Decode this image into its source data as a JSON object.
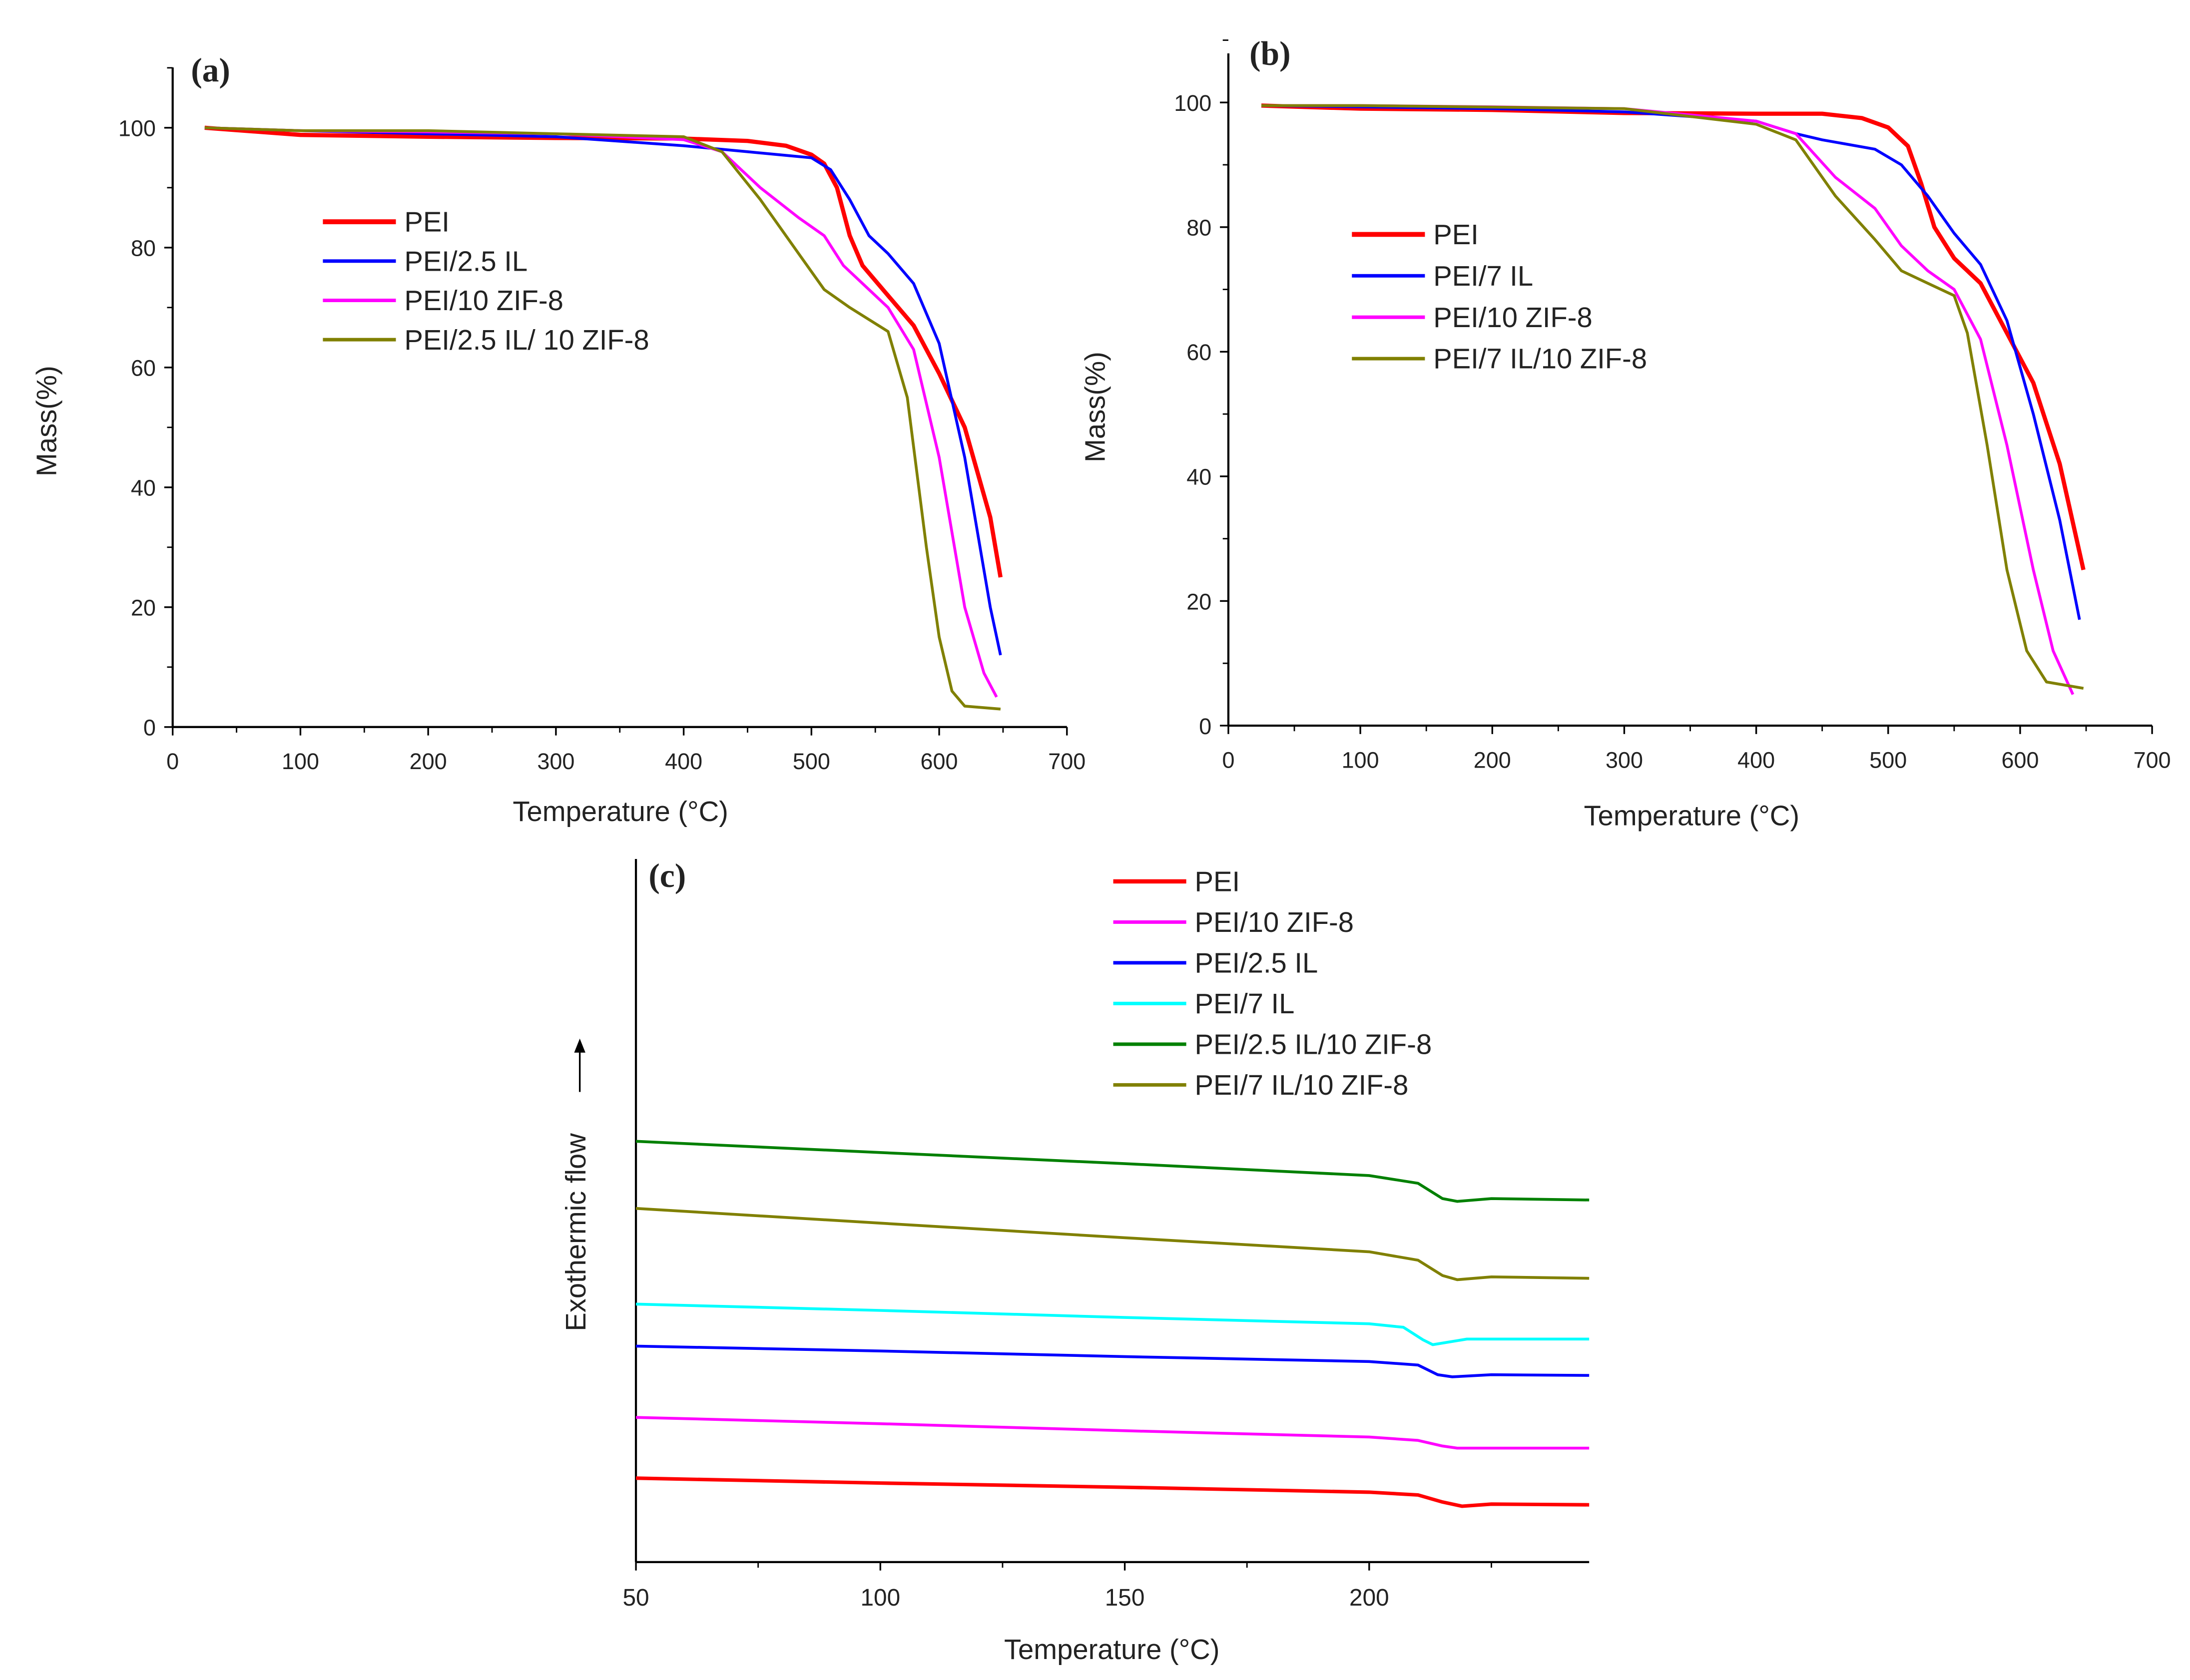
{
  "chart_data": [
    {
      "panel_label": "(a)",
      "type": "line",
      "xlabel": "Temperature (°C)",
      "ylabel": "Mass(%)",
      "xlim": [
        0,
        700
      ],
      "ylim": [
        0,
        110
      ],
      "xticks": [
        0,
        100,
        200,
        300,
        400,
        500,
        600,
        700
      ],
      "yticks": [
        0,
        20,
        40,
        60,
        80,
        100
      ],
      "legend_position": "upper-left",
      "series": [
        {
          "name": "PEI",
          "color": "#ff0000",
          "width": 3,
          "points": [
            [
              25,
              100
            ],
            [
              100,
              98.8
            ],
            [
              200,
              98.5
            ],
            [
              300,
              98.3
            ],
            [
              400,
              98.2
            ],
            [
              450,
              97.8
            ],
            [
              480,
              97
            ],
            [
              500,
              95.5
            ],
            [
              510,
              94
            ],
            [
              520,
              90
            ],
            [
              530,
              82
            ],
            [
              540,
              77
            ],
            [
              560,
              72
            ],
            [
              580,
              67
            ],
            [
              600,
              59
            ],
            [
              620,
              50
            ],
            [
              640,
              35
            ],
            [
              648,
              25
            ]
          ]
        },
        {
          "name": "PEI/2.5 IL",
          "color": "#0000ff",
          "width": 2,
          "points": [
            [
              25,
              100
            ],
            [
              100,
              99.5
            ],
            [
              200,
              99
            ],
            [
              300,
              98.5
            ],
            [
              400,
              97
            ],
            [
              450,
              96
            ],
            [
              500,
              95
            ],
            [
              515,
              93
            ],
            [
              530,
              88
            ],
            [
              545,
              82
            ],
            [
              560,
              79
            ],
            [
              580,
              74
            ],
            [
              600,
              64
            ],
            [
              620,
              45
            ],
            [
              640,
              20
            ],
            [
              648,
              12
            ]
          ]
        },
        {
          "name": "PEI/10 ZIF-8",
          "color": "#ff00ff",
          "width": 2,
          "points": [
            [
              25,
              100
            ],
            [
              100,
              99.5
            ],
            [
              200,
              99.3
            ],
            [
              300,
              99
            ],
            [
              400,
              98
            ],
            [
              430,
              96
            ],
            [
              460,
              90
            ],
            [
              490,
              85
            ],
            [
              510,
              82
            ],
            [
              525,
              77
            ],
            [
              540,
              74
            ],
            [
              560,
              70
            ],
            [
              580,
              63
            ],
            [
              600,
              45
            ],
            [
              620,
              20
            ],
            [
              635,
              9
            ],
            [
              645,
              5
            ]
          ]
        },
        {
          "name": "PEI/2.5 IL/ 10 ZIF-8",
          "color": "#808000",
          "width": 2,
          "points": [
            [
              25,
              100
            ],
            [
              100,
              99.5
            ],
            [
              200,
              99.5
            ],
            [
              300,
              99
            ],
            [
              400,
              98.5
            ],
            [
              430,
              96
            ],
            [
              460,
              88
            ],
            [
              490,
              79
            ],
            [
              510,
              73
            ],
            [
              530,
              70
            ],
            [
              560,
              66
            ],
            [
              575,
              55
            ],
            [
              590,
              30
            ],
            [
              600,
              15
            ],
            [
              610,
              6
            ],
            [
              620,
              3.5
            ],
            [
              648,
              3
            ]
          ]
        }
      ]
    },
    {
      "panel_label": "(b)",
      "type": "line",
      "xlabel": "Temperature (°C)",
      "ylabel": "Mass(%)",
      "xlim": [
        0,
        700
      ],
      "ylim": [
        0,
        110
      ],
      "xticks": [
        0,
        100,
        200,
        300,
        400,
        500,
        600,
        700
      ],
      "yticks": [
        0,
        20,
        40,
        60,
        80,
        100
      ],
      "legend_position": "upper-left",
      "series": [
        {
          "name": "PEI",
          "color": "#ff0000",
          "width": 3,
          "points": [
            [
              25,
              99.5
            ],
            [
              100,
              99
            ],
            [
              200,
              98.8
            ],
            [
              300,
              98.3
            ],
            [
              400,
              98.2
            ],
            [
              450,
              98.2
            ],
            [
              480,
              97.5
            ],
            [
              500,
              96
            ],
            [
              515,
              93
            ],
            [
              525,
              87
            ],
            [
              535,
              80
            ],
            [
              550,
              75
            ],
            [
              570,
              71
            ],
            [
              590,
              63
            ],
            [
              610,
              55
            ],
            [
              630,
              42
            ],
            [
              648,
              25
            ]
          ]
        },
        {
          "name": "PEI/7 IL",
          "color": "#0000ff",
          "width": 2,
          "points": [
            [
              25,
              99.5
            ],
            [
              100,
              99.3
            ],
            [
              200,
              99
            ],
            [
              300,
              98.5
            ],
            [
              400,
              97
            ],
            [
              430,
              95
            ],
            [
              450,
              94
            ],
            [
              490,
              92.5
            ],
            [
              510,
              90
            ],
            [
              530,
              85
            ],
            [
              550,
              79
            ],
            [
              570,
              74
            ],
            [
              590,
              65
            ],
            [
              610,
              50
            ],
            [
              630,
              33
            ],
            [
              645,
              17
            ]
          ]
        },
        {
          "name": "PEI/10 ZIF-8",
          "color": "#ff00ff",
          "width": 2,
          "points": [
            [
              25,
              99.5
            ],
            [
              100,
              99.5
            ],
            [
              200,
              99.3
            ],
            [
              300,
              99
            ],
            [
              400,
              97
            ],
            [
              430,
              95
            ],
            [
              460,
              88
            ],
            [
              490,
              83
            ],
            [
              510,
              77
            ],
            [
              530,
              73
            ],
            [
              550,
              70
            ],
            [
              570,
              62
            ],
            [
              590,
              45
            ],
            [
              610,
              25
            ],
            [
              625,
              12
            ],
            [
              640,
              5
            ]
          ]
        },
        {
          "name": "PEI/7 IL/10 ZIF-8",
          "color": "#808000",
          "width": 2,
          "points": [
            [
              25,
              99.5
            ],
            [
              100,
              99.5
            ],
            [
              300,
              99
            ],
            [
              400,
              96.5
            ],
            [
              430,
              94
            ],
            [
              460,
              85
            ],
            [
              490,
              78
            ],
            [
              510,
              73
            ],
            [
              530,
              71
            ],
            [
              550,
              69
            ],
            [
              560,
              63
            ],
            [
              575,
              45
            ],
            [
              590,
              25
            ],
            [
              605,
              12
            ],
            [
              620,
              7
            ],
            [
              648,
              6
            ]
          ]
        }
      ]
    },
    {
      "panel_label": "(c)",
      "type": "line",
      "xlabel": "Temperature (°C)",
      "ylabel": "Exothermic flow",
      "xlim": [
        50,
        245
      ],
      "ylim": [
        0,
        100
      ],
      "xticks": [
        50,
        100,
        150,
        200
      ],
      "yticks": [],
      "legend_position": "top-right",
      "series": [
        {
          "name": "PEI",
          "color": "#ff0000",
          "width": 2.5,
          "points": [
            [
              50,
              12
            ],
            [
              100,
              11.3
            ],
            [
              150,
              10.7
            ],
            [
              200,
              10
            ],
            [
              210,
              9.6
            ],
            [
              215,
              8.6
            ],
            [
              219,
              8
            ],
            [
              225,
              8.3
            ],
            [
              245,
              8.2
            ]
          ]
        },
        {
          "name": "PEI/10 ZIF-8",
          "color": "#ff00ff",
          "width": 2,
          "points": [
            [
              50,
              20.7
            ],
            [
              100,
              19.8
            ],
            [
              150,
              18.8
            ],
            [
              200,
              17.9
            ],
            [
              210,
              17.4
            ],
            [
              215,
              16.6
            ],
            [
              218,
              16.3
            ],
            [
              245,
              16.3
            ]
          ]
        },
        {
          "name": "PEI/2.5 IL",
          "color": "#0000ff",
          "width": 2,
          "points": [
            [
              50,
              30.9
            ],
            [
              100,
              30.2
            ],
            [
              150,
              29.4
            ],
            [
              200,
              28.7
            ],
            [
              210,
              28.2
            ],
            [
              214,
              26.8
            ],
            [
              217,
              26.5
            ],
            [
              225,
              26.8
            ],
            [
              245,
              26.7
            ]
          ]
        },
        {
          "name": "PEI/7 IL",
          "color": "#00ffff",
          "width": 2,
          "points": [
            [
              50,
              36.9
            ],
            [
              100,
              36
            ],
            [
              150,
              35
            ],
            [
              200,
              34.1
            ],
            [
              207,
              33.6
            ],
            [
              211,
              31.8
            ],
            [
              213,
              31.1
            ],
            [
              220,
              31.9
            ],
            [
              245,
              31.9
            ]
          ]
        },
        {
          "name": "PEI/2.5 IL/10 ZIF-8",
          "color": "#008000",
          "width": 2,
          "points": [
            [
              50,
              60.2
            ],
            [
              100,
              58.6
            ],
            [
              150,
              57
            ],
            [
              200,
              55.3
            ],
            [
              210,
              54.2
            ],
            [
              215,
              52
            ],
            [
              218,
              51.6
            ],
            [
              225,
              52
            ],
            [
              245,
              51.8
            ]
          ]
        },
        {
          "name": "PEI/7 IL/10 ZIF-8",
          "color": "#808000",
          "width": 2,
          "points": [
            [
              50,
              50.6
            ],
            [
              100,
              48.5
            ],
            [
              150,
              46.4
            ],
            [
              200,
              44.4
            ],
            [
              210,
              43.2
            ],
            [
              215,
              41
            ],
            [
              218,
              40.4
            ],
            [
              225,
              40.8
            ],
            [
              245,
              40.6
            ]
          ]
        }
      ]
    }
  ]
}
